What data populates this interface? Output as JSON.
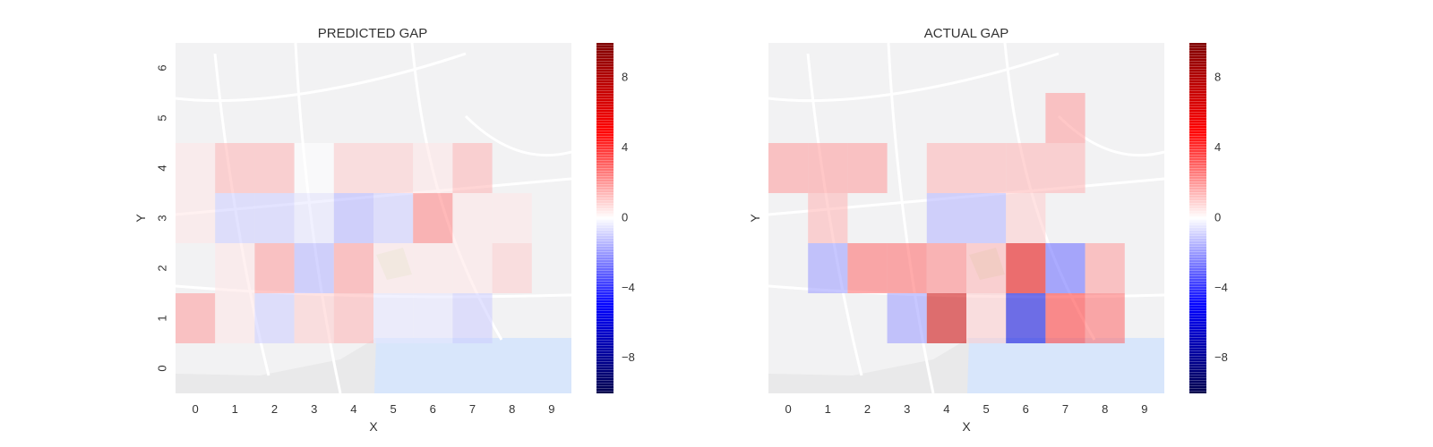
{
  "chart_data": [
    {
      "type": "heatmap",
      "title": "PREDICTED GAP",
      "xlabel": "X",
      "ylabel": "Y",
      "x_ticks": [
        "0",
        "1",
        "2",
        "3",
        "4",
        "5",
        "6",
        "7",
        "8",
        "9"
      ],
      "y_ticks": [
        "0",
        "1",
        "2",
        "3",
        "4",
        "5",
        "6"
      ],
      "background": "street map of Porto (city districts and Douro river)",
      "colorscale": "seismic",
      "vlim": [
        -10,
        10
      ],
      "colorbar_ticks": [
        -8,
        -4,
        0,
        4,
        8
      ],
      "colorbar_tick_labels": [
        "−8",
        "−4",
        "0",
        "4",
        "8"
      ],
      "cells": [
        {
          "x": 0,
          "y": 1,
          "v": 2
        },
        {
          "x": 1,
          "y": 1,
          "v": 0.5
        },
        {
          "x": 2,
          "y": 1,
          "v": -1
        },
        {
          "x": 3,
          "y": 1,
          "v": 1
        },
        {
          "x": 4,
          "y": 1,
          "v": 1.5
        },
        {
          "x": 5,
          "y": 1,
          "v": -0.5
        },
        {
          "x": 6,
          "y": 1,
          "v": -0.5
        },
        {
          "x": 7,
          "y": 1,
          "v": -1
        },
        {
          "x": 1,
          "y": 2,
          "v": 0.5
        },
        {
          "x": 2,
          "y": 2,
          "v": 2
        },
        {
          "x": 3,
          "y": 2,
          "v": -1.5
        },
        {
          "x": 4,
          "y": 2,
          "v": 2
        },
        {
          "x": 5,
          "y": 2,
          "v": 0.5
        },
        {
          "x": 6,
          "y": 2,
          "v": 0.5
        },
        {
          "x": 7,
          "y": 2,
          "v": 0.5
        },
        {
          "x": 8,
          "y": 2,
          "v": 1
        },
        {
          "x": 0,
          "y": 3,
          "v": 0.5
        },
        {
          "x": 1,
          "y": 3,
          "v": -1
        },
        {
          "x": 2,
          "y": 3,
          "v": -1
        },
        {
          "x": 3,
          "y": 3,
          "v": -0.5
        },
        {
          "x": 4,
          "y": 3,
          "v": -1.5
        },
        {
          "x": 5,
          "y": 3,
          "v": -1
        },
        {
          "x": 6,
          "y": 3,
          "v": 2.5
        },
        {
          "x": 7,
          "y": 3,
          "v": 0.5
        },
        {
          "x": 8,
          "y": 3,
          "v": 0.5
        },
        {
          "x": 0,
          "y": 4,
          "v": 0.5
        },
        {
          "x": 1,
          "y": 4,
          "v": 1.5
        },
        {
          "x": 2,
          "y": 4,
          "v": 1.5
        },
        {
          "x": 3,
          "y": 4,
          "v": 0
        },
        {
          "x": 4,
          "y": 4,
          "v": 1
        },
        {
          "x": 5,
          "y": 4,
          "v": 1
        },
        {
          "x": 6,
          "y": 4,
          "v": 0.5
        },
        {
          "x": 7,
          "y": 4,
          "v": 1.5
        }
      ]
    },
    {
      "type": "heatmap",
      "title": "ACTUAL GAP",
      "xlabel": "X",
      "ylabel": "Y",
      "x_ticks": [
        "0",
        "1",
        "2",
        "3",
        "4",
        "5",
        "6",
        "7",
        "8",
        "9"
      ],
      "y_ticks": [],
      "background": "street map of Porto (city districts and Douro river)",
      "colorscale": "seismic",
      "vlim": [
        -10,
        10
      ],
      "colorbar_ticks": [
        -8,
        -4,
        0,
        4,
        8
      ],
      "colorbar_tick_labels": [
        "−8",
        "−4",
        "0",
        "4",
        "8"
      ],
      "cells": [
        {
          "x": 3,
          "y": 1,
          "v": -2
        },
        {
          "x": 4,
          "y": 1,
          "v": 7
        },
        {
          "x": 5,
          "y": 1,
          "v": 1
        },
        {
          "x": 6,
          "y": 1,
          "v": -6
        },
        {
          "x": 7,
          "y": 1,
          "v": 4
        },
        {
          "x": 8,
          "y": 1,
          "v": 3
        },
        {
          "x": 1,
          "y": 2,
          "v": -2
        },
        {
          "x": 2,
          "y": 2,
          "v": 3
        },
        {
          "x": 3,
          "y": 2,
          "v": 3
        },
        {
          "x": 4,
          "y": 2,
          "v": 2.5
        },
        {
          "x": 5,
          "y": 2,
          "v": 1.5
        },
        {
          "x": 6,
          "y": 2,
          "v": 6
        },
        {
          "x": 7,
          "y": 2,
          "v": -3
        },
        {
          "x": 8,
          "y": 2,
          "v": 2
        },
        {
          "x": 1,
          "y": 3,
          "v": 1.5
        },
        {
          "x": 4,
          "y": 3,
          "v": -1.5
        },
        {
          "x": 5,
          "y": 3,
          "v": -1.5
        },
        {
          "x": 6,
          "y": 3,
          "v": 1
        },
        {
          "x": 0,
          "y": 4,
          "v": 2
        },
        {
          "x": 1,
          "y": 4,
          "v": 2
        },
        {
          "x": 2,
          "y": 4,
          "v": 2
        },
        {
          "x": 4,
          "y": 4,
          "v": 1.5
        },
        {
          "x": 5,
          "y": 4,
          "v": 1.5
        },
        {
          "x": 6,
          "y": 4,
          "v": 1.5
        },
        {
          "x": 7,
          "y": 4,
          "v": 1.5
        },
        {
          "x": 7,
          "y": 5,
          "v": 2
        }
      ]
    }
  ]
}
